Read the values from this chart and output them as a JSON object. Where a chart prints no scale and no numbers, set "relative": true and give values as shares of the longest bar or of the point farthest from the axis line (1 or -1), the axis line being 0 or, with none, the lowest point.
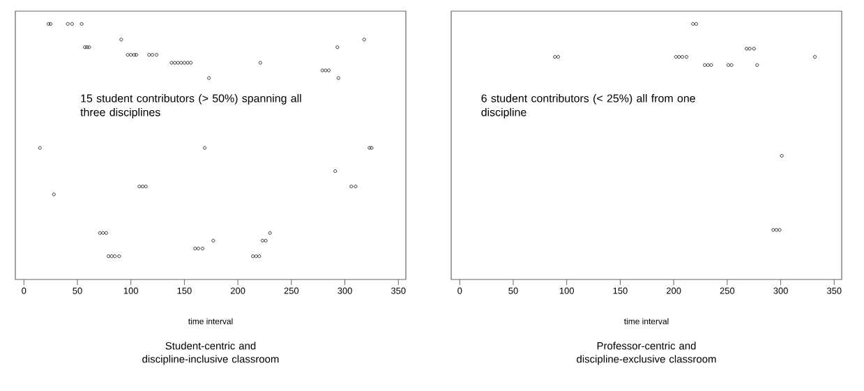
{
  "chart_data": [
    {
      "type": "scatter",
      "title": "Student-centric and discipline-inclusive classroom",
      "xlabel": "time interval",
      "annotations": [
        "15 student contributors (> 50%) spanning all three disciplines"
      ],
      "relative": true,
      "xlim": [
        -8,
        357
      ],
      "xticks": [
        0,
        50,
        100,
        150,
        200,
        250,
        300,
        350
      ],
      "tick_labels": "x",
      "marker": "circle",
      "grid": false,
      "series": [
        {
          "color": "#000000",
          "x": [
            23,
            25,
            41,
            45,
            54,
            91,
            318,
            57,
            59,
            61,
            293,
            97,
            100,
            103,
            105,
            117,
            120,
            124,
            138,
            141,
            144,
            147,
            150,
            153,
            156,
            221,
            279,
            282,
            285,
            173,
            294,
            15,
            169,
            323,
            325,
            291,
            108,
            111,
            114,
            306,
            310,
            28,
            71,
            74,
            77,
            230,
            177,
            223,
            226,
            160,
            163,
            167,
            79,
            82,
            85,
            89,
            214,
            217,
            220
          ],
          "values": [
            1,
            1,
            1,
            1,
            1,
            0.939,
            0.939,
            0.909,
            0.909,
            0.909,
            0.909,
            0.879,
            0.879,
            0.879,
            0.879,
            0.879,
            0.879,
            0.879,
            0.848,
            0.848,
            0.848,
            0.848,
            0.848,
            0.848,
            0.848,
            0.848,
            0.818,
            0.818,
            0.818,
            0.788,
            0.788,
            0.515,
            0.515,
            0.515,
            0.515,
            0.424,
            0.364,
            0.364,
            0.364,
            0.364,
            0.364,
            0.333,
            0.182,
            0.182,
            0.182,
            0.182,
            0.152,
            0.152,
            0.152,
            0.121,
            0.121,
            0.121,
            0.091,
            0.091,
            0.091,
            0.091,
            0.091,
            0.091,
            0.091
          ]
        }
      ]
    },
    {
      "type": "scatter",
      "title": "Professor-centric and discipline-exclusive classroom",
      "xlabel": "time interval",
      "annotations": [
        "6 student contributors (< 25%) all from one discipline"
      ],
      "relative": true,
      "xlim": [
        -8,
        357
      ],
      "xticks": [
        0,
        50,
        100,
        150,
        200,
        250,
        300,
        350
      ],
      "tick_labels": "x",
      "marker": "circle",
      "grid": false,
      "series": [
        {
          "color": "#000000",
          "x": [
            218,
            221,
            268,
            271,
            275,
            89,
            92,
            202,
            205,
            208,
            212,
            332,
            229,
            232,
            235,
            251,
            254,
            278,
            301,
            293,
            296,
            299
          ],
          "values": [
            1,
            1,
            0.903,
            0.903,
            0.903,
            0.871,
            0.871,
            0.871,
            0.871,
            0.871,
            0.871,
            0.871,
            0.839,
            0.839,
            0.839,
            0.839,
            0.839,
            0.839,
            0.484,
            0.194,
            0.194,
            0.194
          ]
        }
      ]
    }
  ]
}
